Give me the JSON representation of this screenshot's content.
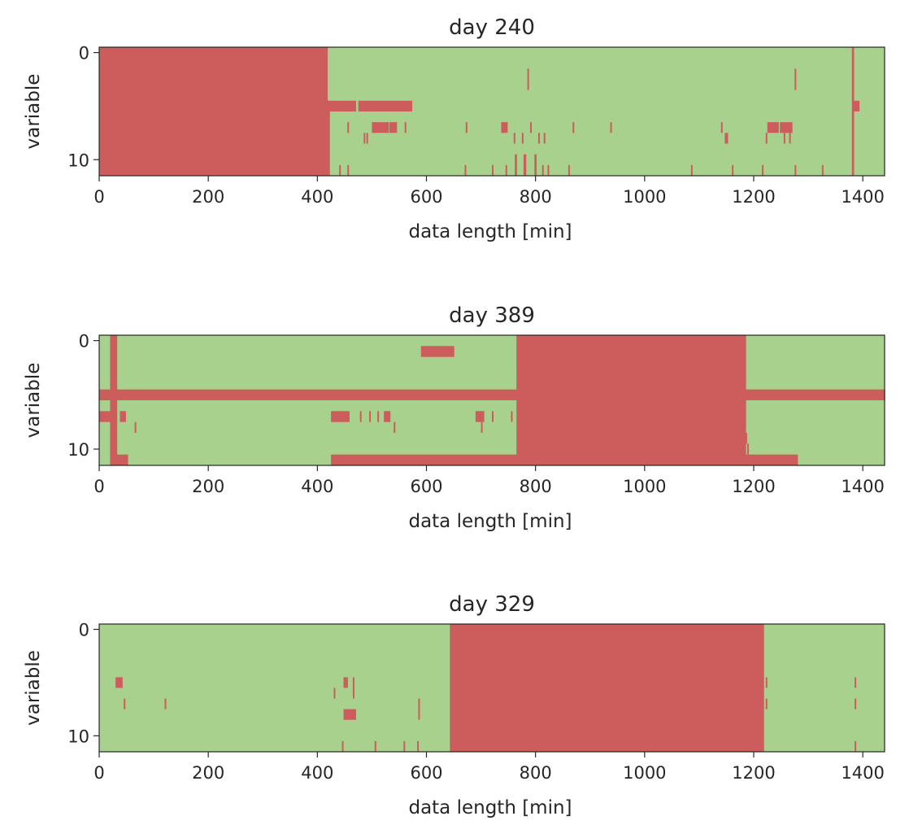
{
  "colors": {
    "missing": "#cd5c5c",
    "present": "#a9d18e",
    "axis": "#262626",
    "background": "#ffffff"
  },
  "chart_data": [
    {
      "type": "heatmap",
      "title": "day 240",
      "xlabel": "data length [min]",
      "ylabel": "variable",
      "xlim": [
        0,
        1440
      ],
      "ylim": [
        11.5,
        -0.5
      ],
      "xticks": [
        0,
        200,
        400,
        600,
        800,
        1000,
        1200,
        1400
      ],
      "yticks": [
        0,
        10
      ],
      "background": "present",
      "missing_segments": [
        {
          "x0": 0,
          "x1": 418,
          "y0": 0,
          "y1": 11
        },
        {
          "x0": 1380,
          "x1": 1383,
          "y0": 0,
          "y1": 11
        },
        {
          "x0": 418,
          "x1": 422,
          "y0": 5,
          "y1": 11
        },
        {
          "x0": 420,
          "x1": 470,
          "y0": 5,
          "y1": 5
        },
        {
          "x0": 475,
          "x1": 573,
          "y0": 5,
          "y1": 5
        },
        {
          "x0": 1383,
          "x1": 1393,
          "y0": 5,
          "y1": 5
        },
        {
          "x0": 500,
          "x1": 530,
          "y0": 7,
          "y1": 7
        },
        {
          "x0": 532,
          "x1": 545,
          "y0": 7,
          "y1": 7
        },
        {
          "x0": 737,
          "x1": 748,
          "y0": 7,
          "y1": 7
        },
        {
          "x0": 1225,
          "x1": 1245,
          "y0": 7,
          "y1": 7
        },
        {
          "x0": 1248,
          "x1": 1270,
          "y0": 7,
          "y1": 7
        },
        {
          "x0": 1147,
          "x1": 1152,
          "y0": 8,
          "y1": 8
        },
        {
          "x0": 785,
          "x1": 787,
          "y0": 2,
          "y1": 3
        },
        {
          "x0": 1275,
          "x1": 1277,
          "y0": 2,
          "y1": 3
        },
        {
          "x0": 778,
          "x1": 782,
          "y0": 10,
          "y1": 11
        },
        {
          "x0": 762,
          "x1": 765,
          "y0": 10,
          "y1": 11
        },
        {
          "x0": 798,
          "x1": 801,
          "y0": 10,
          "y1": 11
        }
      ],
      "missing_ticks": [
        {
          "x": 455,
          "y": 7
        },
        {
          "x": 485,
          "y": 8
        },
        {
          "x": 490,
          "y": 8
        },
        {
          "x": 560,
          "y": 7
        },
        {
          "x": 672,
          "y": 7
        },
        {
          "x": 760,
          "y": 8
        },
        {
          "x": 775,
          "y": 8
        },
        {
          "x": 790,
          "y": 7
        },
        {
          "x": 805,
          "y": 8
        },
        {
          "x": 815,
          "y": 8
        },
        {
          "x": 868,
          "y": 7
        },
        {
          "x": 937,
          "y": 7
        },
        {
          "x": 1140,
          "y": 7
        },
        {
          "x": 1222,
          "y": 8
        },
        {
          "x": 1255,
          "y": 8
        },
        {
          "x": 1265,
          "y": 8
        },
        {
          "x": 440,
          "y": 11
        },
        {
          "x": 455,
          "y": 11
        },
        {
          "x": 670,
          "y": 11
        },
        {
          "x": 720,
          "y": 11
        },
        {
          "x": 745,
          "y": 11
        },
        {
          "x": 812,
          "y": 11
        },
        {
          "x": 822,
          "y": 11
        },
        {
          "x": 860,
          "y": 11
        },
        {
          "x": 1085,
          "y": 11
        },
        {
          "x": 1160,
          "y": 11
        },
        {
          "x": 1215,
          "y": 11
        },
        {
          "x": 1275,
          "y": 11
        },
        {
          "x": 1325,
          "y": 11
        }
      ]
    },
    {
      "type": "heatmap",
      "title": "day 389",
      "xlabel": "data length [min]",
      "ylabel": "variable",
      "xlim": [
        0,
        1440
      ],
      "ylim": [
        11.5,
        -0.5
      ],
      "xticks": [
        0,
        200,
        400,
        600,
        800,
        1000,
        1200,
        1400
      ],
      "yticks": [
        0,
        10
      ],
      "background": "present",
      "missing_segments": [
        {
          "x0": 765,
          "x1": 1185,
          "y0": 0,
          "y1": 11
        },
        {
          "x0": 20,
          "x1": 32,
          "y0": 0,
          "y1": 11
        },
        {
          "x0": 0,
          "x1": 1440,
          "y0": 5,
          "y1": 5
        },
        {
          "x0": 590,
          "x1": 650,
          "y0": 1,
          "y1": 1
        },
        {
          "x0": 0,
          "x1": 20,
          "y0": 7,
          "y1": 7
        },
        {
          "x0": 38,
          "x1": 48,
          "y0": 7,
          "y1": 7
        },
        {
          "x0": 425,
          "x1": 458,
          "y0": 7,
          "y1": 7
        },
        {
          "x0": 522,
          "x1": 533,
          "y0": 7,
          "y1": 7
        },
        {
          "x0": 690,
          "x1": 705,
          "y0": 7,
          "y1": 7
        },
        {
          "x0": 425,
          "x1": 1280,
          "y0": 11,
          "y1": 11
        },
        {
          "x0": 30,
          "x1": 52,
          "y0": 11,
          "y1": 11
        }
      ],
      "missing_ticks": [
        {
          "x": 478,
          "y": 7
        },
        {
          "x": 495,
          "y": 7
        },
        {
          "x": 510,
          "y": 7
        },
        {
          "x": 540,
          "y": 8
        },
        {
          "x": 720,
          "y": 7
        },
        {
          "x": 755,
          "y": 7
        },
        {
          "x": 700,
          "y": 8
        },
        {
          "x": 65,
          "y": 8
        },
        {
          "x": 1185,
          "y": 9
        },
        {
          "x": 1188,
          "y": 10
        }
      ]
    },
    {
      "type": "heatmap",
      "title": "day 329",
      "xlabel": "data length [min]",
      "ylabel": "variable",
      "xlim": [
        0,
        1440
      ],
      "ylim": [
        11.5,
        -0.5
      ],
      "xticks": [
        0,
        200,
        400,
        600,
        800,
        1000,
        1200,
        1400
      ],
      "yticks": [
        0,
        10
      ],
      "background": "present",
      "missing_segments": [
        {
          "x0": 643,
          "x1": 1218,
          "y0": 0,
          "y1": 11
        },
        {
          "x0": 30,
          "x1": 42,
          "y0": 5,
          "y1": 5
        },
        {
          "x0": 448,
          "x1": 455,
          "y0": 5,
          "y1": 5
        },
        {
          "x0": 448,
          "x1": 470,
          "y0": 8,
          "y1": 8
        }
      ],
      "missing_ticks": [
        {
          "x": 45,
          "y": 7
        },
        {
          "x": 120,
          "y": 7
        },
        {
          "x": 430,
          "y": 6
        },
        {
          "x": 465,
          "y": 5
        },
        {
          "x": 465,
          "y": 6
        },
        {
          "x": 585,
          "y": 7
        },
        {
          "x": 585,
          "y": 8
        },
        {
          "x": 445,
          "y": 11
        },
        {
          "x": 505,
          "y": 11
        },
        {
          "x": 558,
          "y": 11
        },
        {
          "x": 583,
          "y": 11
        },
        {
          "x": 1222,
          "y": 5
        },
        {
          "x": 1222,
          "y": 7
        },
        {
          "x": 1385,
          "y": 5
        },
        {
          "x": 1385,
          "y": 7
        },
        {
          "x": 1385,
          "y": 11
        }
      ]
    }
  ]
}
